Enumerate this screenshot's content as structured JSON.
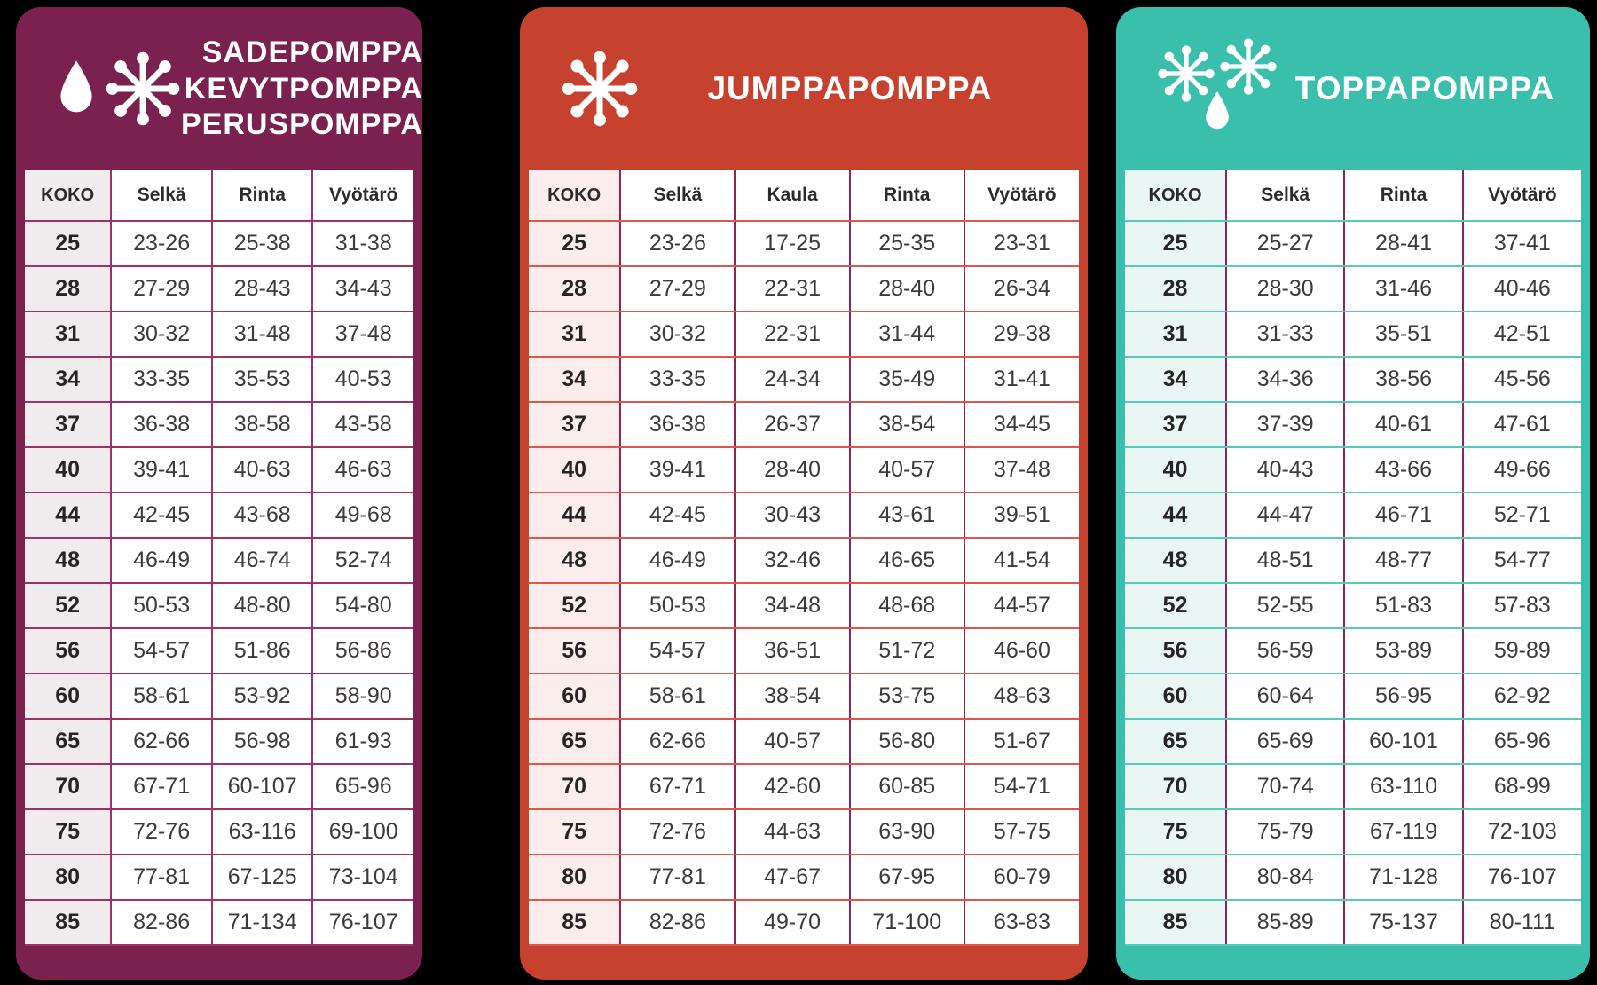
{
  "page": {
    "background": "#000000"
  },
  "panels": [
    {
      "id": "sadepomppa-kevytpomppa-peruspomppa",
      "title_lines": [
        "SADEPOMPPA",
        "KEVYTPOMPPA",
        "PERUSPOMPPA"
      ],
      "icons": [
        "droplet-icon",
        "snowflake-icon"
      ],
      "colors": {
        "panel": "#7b2150",
        "column_line": "#a03168",
        "row_line": "#a03168",
        "koko_column_bg": "#f0ecee",
        "title_text": "#ffffff"
      },
      "table": {
        "columns": [
          "KOKO",
          "Selkä",
          "Rinta",
          "Vyötärö"
        ],
        "rows": [
          [
            "25",
            "23-26",
            "25-38",
            "31-38"
          ],
          [
            "28",
            "27-29",
            "28-43",
            "34-43"
          ],
          [
            "31",
            "30-32",
            "31-48",
            "37-48"
          ],
          [
            "34",
            "33-35",
            "35-53",
            "40-53"
          ],
          [
            "37",
            "36-38",
            "38-58",
            "43-58"
          ],
          [
            "40",
            "39-41",
            "40-63",
            "46-63"
          ],
          [
            "44",
            "42-45",
            "43-68",
            "49-68"
          ],
          [
            "48",
            "46-49",
            "46-74",
            "52-74"
          ],
          [
            "52",
            "50-53",
            "48-80",
            "54-80"
          ],
          [
            "56",
            "54-57",
            "51-86",
            "56-86"
          ],
          [
            "60",
            "58-61",
            "53-92",
            "58-90"
          ],
          [
            "65",
            "62-66",
            "56-98",
            "61-93"
          ],
          [
            "70",
            "67-71",
            "60-107",
            "65-96"
          ],
          [
            "75",
            "72-76",
            "63-116",
            "69-100"
          ],
          [
            "80",
            "77-81",
            "67-125",
            "73-104"
          ],
          [
            "85",
            "82-86",
            "71-134",
            "76-107"
          ]
        ]
      }
    },
    {
      "id": "jumppapomppa",
      "title_lines": [
        "JUMPPAPOMPPA"
      ],
      "icons": [
        "snowflake-icon"
      ],
      "colors": {
        "panel": "#c7412f",
        "column_line": "#8d2358",
        "row_line": "#e0574a",
        "koko_column_bg": "#faedeb",
        "title_text": "#ffffff"
      },
      "table": {
        "columns": [
          "KOKO",
          "Selkä",
          "Kaula",
          "Rinta",
          "Vyötärö"
        ],
        "rows": [
          [
            "25",
            "23-26",
            "17-25",
            "25-35",
            "23-31"
          ],
          [
            "28",
            "27-29",
            "22-31",
            "28-40",
            "26-34"
          ],
          [
            "31",
            "30-32",
            "22-31",
            "31-44",
            "29-38"
          ],
          [
            "34",
            "33-35",
            "24-34",
            "35-49",
            "31-41"
          ],
          [
            "37",
            "36-38",
            "26-37",
            "38-54",
            "34-45"
          ],
          [
            "40",
            "39-41",
            "28-40",
            "40-57",
            "37-48"
          ],
          [
            "44",
            "42-45",
            "30-43",
            "43-61",
            "39-51"
          ],
          [
            "48",
            "46-49",
            "32-46",
            "46-65",
            "41-54"
          ],
          [
            "52",
            "50-53",
            "34-48",
            "48-68",
            "44-57"
          ],
          [
            "56",
            "54-57",
            "36-51",
            "51-72",
            "46-60"
          ],
          [
            "60",
            "58-61",
            "38-54",
            "53-75",
            "48-63"
          ],
          [
            "65",
            "62-66",
            "40-57",
            "56-80",
            "51-67"
          ],
          [
            "70",
            "67-71",
            "42-60",
            "60-85",
            "54-71"
          ],
          [
            "75",
            "72-76",
            "44-63",
            "63-90",
            "57-75"
          ],
          [
            "80",
            "77-81",
            "47-67",
            "67-95",
            "60-79"
          ],
          [
            "85",
            "82-86",
            "49-70",
            "71-100",
            "63-83"
          ]
        ]
      }
    },
    {
      "id": "toppapomppa",
      "title_lines": [
        "TOPPAPOMPPA"
      ],
      "icons": [
        "snowflake-icon",
        "snowflake-icon",
        "droplet-icon"
      ],
      "colors": {
        "panel": "#3abfac",
        "column_line": "#8d2358",
        "row_line": "#56cbba",
        "koko_column_bg": "#e9f6f3",
        "title_text": "#ffffff"
      },
      "table": {
        "columns": [
          "KOKO",
          "Selkä",
          "Rinta",
          "Vyötärö"
        ],
        "rows": [
          [
            "25",
            "25-27",
            "28-41",
            "37-41"
          ],
          [
            "28",
            "28-30",
            "31-46",
            "40-46"
          ],
          [
            "31",
            "31-33",
            "35-51",
            "42-51"
          ],
          [
            "34",
            "34-36",
            "38-56",
            "45-56"
          ],
          [
            "37",
            "37-39",
            "40-61",
            "47-61"
          ],
          [
            "40",
            "40-43",
            "43-66",
            "49-66"
          ],
          [
            "44",
            "44-47",
            "46-71",
            "52-71"
          ],
          [
            "48",
            "48-51",
            "48-77",
            "54-77"
          ],
          [
            "52",
            "52-55",
            "51-83",
            "57-83"
          ],
          [
            "56",
            "56-59",
            "53-89",
            "59-89"
          ],
          [
            "60",
            "60-64",
            "56-95",
            "62-92"
          ],
          [
            "65",
            "65-69",
            "60-101",
            "65-96"
          ],
          [
            "70",
            "70-74",
            "63-110",
            "68-99"
          ],
          [
            "75",
            "75-79",
            "67-119",
            "72-103"
          ],
          [
            "80",
            "80-84",
            "71-128",
            "76-107"
          ],
          [
            "85",
            "85-89",
            "75-137",
            "80-111"
          ]
        ]
      }
    }
  ]
}
